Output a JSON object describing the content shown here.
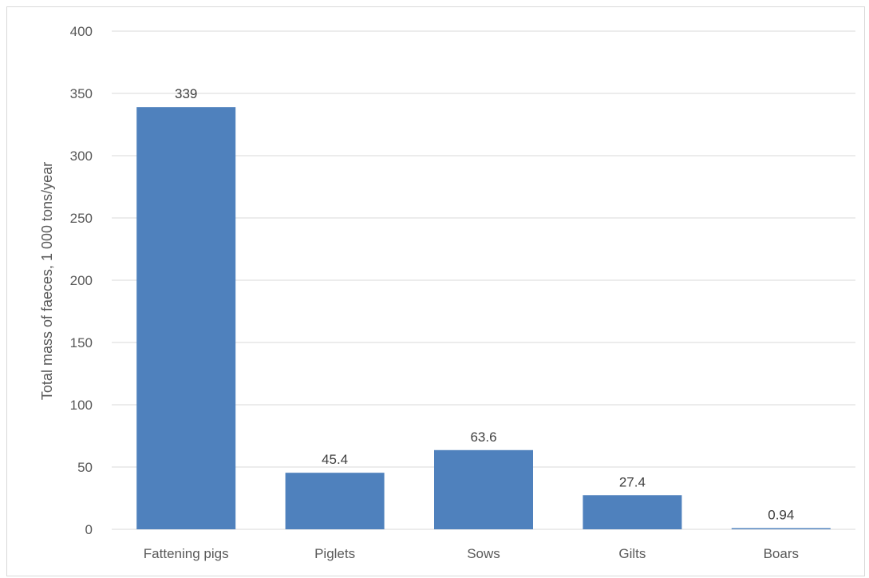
{
  "chart_data": {
    "type": "bar",
    "title": "",
    "xlabel": "",
    "ylabel": "Total mass of faeces, 1 000 tons/year",
    "categories": [
      "Fattening pigs",
      "Piglets",
      "Sows",
      "Gilts",
      "Boars"
    ],
    "values": [
      339,
      45.4,
      63.6,
      27.4,
      0.94
    ],
    "data_labels": [
      "339",
      "45.4",
      "63.6",
      "27.4",
      "0.94"
    ],
    "ylim": [
      0,
      400
    ],
    "yticks": [
      0,
      50,
      100,
      150,
      200,
      250,
      300,
      350,
      400
    ],
    "grid": true,
    "legend": "none",
    "colors": {
      "bar": "#4f81bd",
      "grid": "#d9d9d9",
      "text": "#595959"
    }
  }
}
